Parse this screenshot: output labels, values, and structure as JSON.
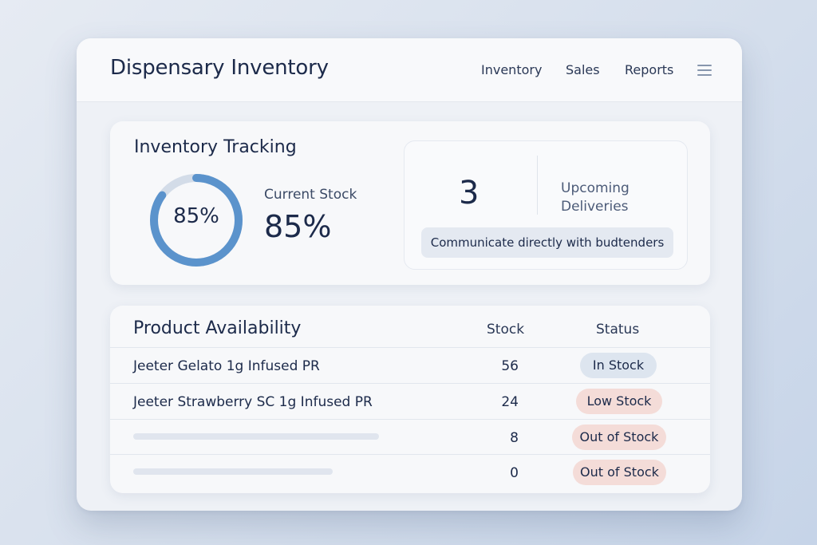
{
  "app": {
    "title": "Dispensary Inventory",
    "nav": [
      "Inventory",
      "Sales",
      "Reports"
    ],
    "menu_icon": "hamburger-menu-icon"
  },
  "tracking": {
    "title": "Inventory Tracking",
    "donut_percent": 85,
    "donut_label": "85%",
    "current_stock_caption": "Current Stock",
    "current_stock_value": "85%",
    "deliveries_count": "3",
    "deliveries_label_line1": "Upcoming",
    "deliveries_label_line2": "Deliveries",
    "communicate_button": "Communicate directly with budtenders",
    "colors": {
      "donut_fill": "#5b93cc",
      "donut_track": "#d3dce8"
    }
  },
  "products": {
    "title": "Product Availability",
    "columns": {
      "stock": "Stock",
      "status": "Status"
    },
    "rows": [
      {
        "name": "Jeeter Gelato 1g Infused PR",
        "stock": "56",
        "status": "In Stock",
        "status_color": "#dde5ef"
      },
      {
        "name": "Jeeter Strawberry SC 1g Infused PR",
        "stock": "24",
        "status": "Low Stock",
        "status_color": "#f4dcd8"
      },
      {
        "name": "",
        "stock": "8",
        "status": "Out of Stock",
        "status_color": "#f4dcd8"
      },
      {
        "name": "",
        "stock": "0",
        "status": "Out of Stock",
        "status_color": "#f4dcd8"
      }
    ]
  }
}
